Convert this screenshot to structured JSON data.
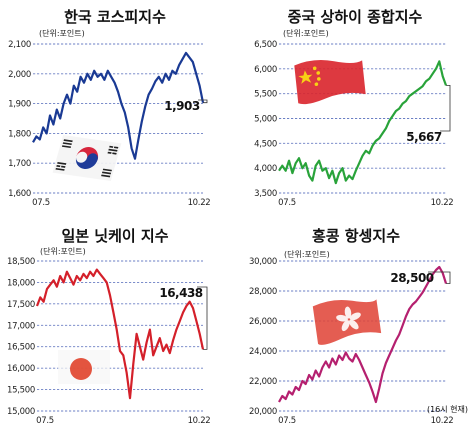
{
  "chart_data": [
    {
      "type": "line",
      "title": "한국 코스피지수",
      "unit": "(단위:포인트)",
      "ylim": [
        1600,
        2100
      ],
      "yticks": [
        1600,
        1700,
        1800,
        1900,
        2000,
        2100
      ],
      "ytick_labels": [
        "1,600",
        "1,700",
        "1,800",
        "1,900",
        "2,000",
        "2,100"
      ],
      "xtick_labels": [
        "07.5",
        "10.22"
      ],
      "last_value": "1,903",
      "line_color": "#1a3a94",
      "grid": true,
      "decoration": "korean-flag-icon",
      "series": [
        {
          "x": [
            0,
            0.02,
            0.04,
            0.06,
            0.08,
            0.1,
            0.12,
            0.14,
            0.16,
            0.18,
            0.2,
            0.22,
            0.24,
            0.26,
            0.28,
            0.3,
            0.32,
            0.34,
            0.36,
            0.38,
            0.4,
            0.42,
            0.44,
            0.46,
            0.48,
            0.5,
            0.52,
            0.54,
            0.56,
            0.58,
            0.6,
            0.62,
            0.64,
            0.66,
            0.68,
            0.7,
            0.72,
            0.74,
            0.76,
            0.78,
            0.8,
            0.82,
            0.84,
            0.86,
            0.88,
            0.9,
            0.92,
            0.94,
            0.96,
            0.98,
            1.0
          ],
          "y": [
            1770,
            1790,
            1780,
            1820,
            1800,
            1860,
            1830,
            1880,
            1850,
            1900,
            1930,
            1900,
            1960,
            1940,
            1990,
            1970,
            2000,
            1980,
            2010,
            1990,
            2000,
            1980,
            2010,
            1990,
            1970,
            1940,
            1900,
            1870,
            1820,
            1750,
            1715,
            1780,
            1840,
            1890,
            1930,
            1950,
            1975,
            1990,
            1970,
            2000,
            1980,
            2010,
            2000,
            2030,
            2050,
            2070,
            2055,
            2040,
            2000,
            1960,
            1903
          ]
        }
      ]
    },
    {
      "type": "line",
      "title": "중국 상하이 종합지수",
      "unit": "(단위:포인트)",
      "ylim": [
        3500,
        6500
      ],
      "yticks": [
        3500,
        4000,
        4500,
        5000,
        5500,
        6000,
        6500
      ],
      "ytick_labels": [
        "3,500",
        "4,000",
        "4,500",
        "5,000",
        "5,500",
        "6,000",
        "6,500"
      ],
      "xtick_labels": [
        "07.5",
        "10.22"
      ],
      "last_value": "5,667",
      "line_color": "#29a33a",
      "grid": true,
      "decoration": "chinese-flag-icon",
      "series": [
        {
          "x": [
            0,
            0.02,
            0.04,
            0.06,
            0.08,
            0.1,
            0.12,
            0.14,
            0.16,
            0.18,
            0.2,
            0.22,
            0.24,
            0.26,
            0.28,
            0.3,
            0.32,
            0.34,
            0.36,
            0.38,
            0.4,
            0.42,
            0.44,
            0.46,
            0.48,
            0.5,
            0.52,
            0.54,
            0.56,
            0.58,
            0.6,
            0.62,
            0.64,
            0.66,
            0.68,
            0.7,
            0.72,
            0.74,
            0.76,
            0.78,
            0.8,
            0.82,
            0.84,
            0.86,
            0.88,
            0.9,
            0.92,
            0.94,
            0.96,
            0.98,
            1.0
          ],
          "y": [
            3950,
            4050,
            3950,
            4150,
            3900,
            4100,
            4200,
            4000,
            4100,
            3850,
            3750,
            4050,
            4150,
            3950,
            4000,
            3800,
            3950,
            3700,
            3900,
            4000,
            3750,
            3850,
            3780,
            3950,
            4100,
            4250,
            4350,
            4300,
            4450,
            4550,
            4600,
            4700,
            4800,
            4950,
            5050,
            5150,
            5200,
            5300,
            5350,
            5450,
            5500,
            5550,
            5600,
            5650,
            5750,
            5800,
            5900,
            6000,
            6150,
            5850,
            5667
          ]
        }
      ]
    },
    {
      "type": "line",
      "title": "일본 닛케이 지수",
      "unit": "(단위:포인트)",
      "ylim": [
        15000,
        18500
      ],
      "yticks": [
        15000,
        15500,
        16000,
        16500,
        17000,
        17500,
        18000,
        18500
      ],
      "ytick_labels": [
        "15,000",
        "15,500",
        "16,000",
        "16,500",
        "17,000",
        "17,500",
        "18,000",
        "18,500"
      ],
      "xtick_labels": [
        "07.5",
        "10.22"
      ],
      "last_value": "16,438",
      "line_color": "#d4202a",
      "grid": true,
      "decoration": "japanese-flag-icon",
      "series": [
        {
          "x": [
            0,
            0.02,
            0.04,
            0.06,
            0.08,
            0.1,
            0.12,
            0.14,
            0.16,
            0.18,
            0.2,
            0.22,
            0.24,
            0.26,
            0.28,
            0.3,
            0.32,
            0.34,
            0.36,
            0.38,
            0.4,
            0.42,
            0.44,
            0.46,
            0.48,
            0.5,
            0.52,
            0.54,
            0.56,
            0.58,
            0.6,
            0.62,
            0.64,
            0.66,
            0.68,
            0.7,
            0.72,
            0.74,
            0.76,
            0.78,
            0.8,
            0.82,
            0.84,
            0.86,
            0.88,
            0.9,
            0.92,
            0.94,
            0.96,
            0.98,
            1.0
          ],
          "y": [
            17450,
            17650,
            17550,
            17850,
            17950,
            18050,
            17900,
            18150,
            18000,
            18250,
            18100,
            17950,
            18150,
            18050,
            18200,
            18100,
            18250,
            18150,
            18300,
            18200,
            18100,
            18000,
            17700,
            17300,
            16900,
            16400,
            16300,
            15900,
            15300,
            16100,
            16800,
            16500,
            16200,
            16600,
            16900,
            16300,
            16500,
            16700,
            16400,
            16550,
            16350,
            16650,
            16900,
            17100,
            17300,
            17450,
            17550,
            17400,
            17100,
            16800,
            16438
          ]
        }
      ]
    },
    {
      "type": "line",
      "title": "홍콩 항셍지수",
      "unit": "(단위:포인트)",
      "ylim": [
        20000,
        30000
      ],
      "yticks": [
        20000,
        22000,
        24000,
        26000,
        28000,
        30000
      ],
      "ytick_labels": [
        "20,000",
        "22,000",
        "24,000",
        "26,000",
        "28,000",
        "30,000"
      ],
      "xtick_labels": [
        "07.5",
        "10.22"
      ],
      "last_value": "28,500",
      "note": "(16시 현재)",
      "line_color": "#b5206f",
      "grid": true,
      "decoration": "hongkong-flag-icon",
      "series": [
        {
          "x": [
            0,
            0.02,
            0.04,
            0.06,
            0.08,
            0.1,
            0.12,
            0.14,
            0.16,
            0.18,
            0.2,
            0.22,
            0.24,
            0.26,
            0.28,
            0.3,
            0.32,
            0.34,
            0.36,
            0.38,
            0.4,
            0.42,
            0.44,
            0.46,
            0.48,
            0.5,
            0.52,
            0.54,
            0.56,
            0.58,
            0.6,
            0.62,
            0.64,
            0.66,
            0.68,
            0.7,
            0.72,
            0.74,
            0.76,
            0.78,
            0.8,
            0.82,
            0.84,
            0.86,
            0.88,
            0.9,
            0.92,
            0.94,
            0.96,
            0.98,
            1.0
          ],
          "y": [
            20600,
            21000,
            20800,
            21300,
            21100,
            21600,
            21400,
            22000,
            21800,
            22400,
            22100,
            22700,
            22300,
            22900,
            23300,
            22900,
            23500,
            23100,
            23700,
            23400,
            23900,
            23500,
            23300,
            23800,
            23400,
            22900,
            22400,
            21900,
            21300,
            20600,
            21500,
            22500,
            23200,
            23700,
            24200,
            24700,
            25100,
            25700,
            26300,
            26800,
            27100,
            27300,
            27600,
            27900,
            28300,
            28700,
            29100,
            29400,
            29600,
            29200,
            28500
          ]
        }
      ]
    }
  ]
}
